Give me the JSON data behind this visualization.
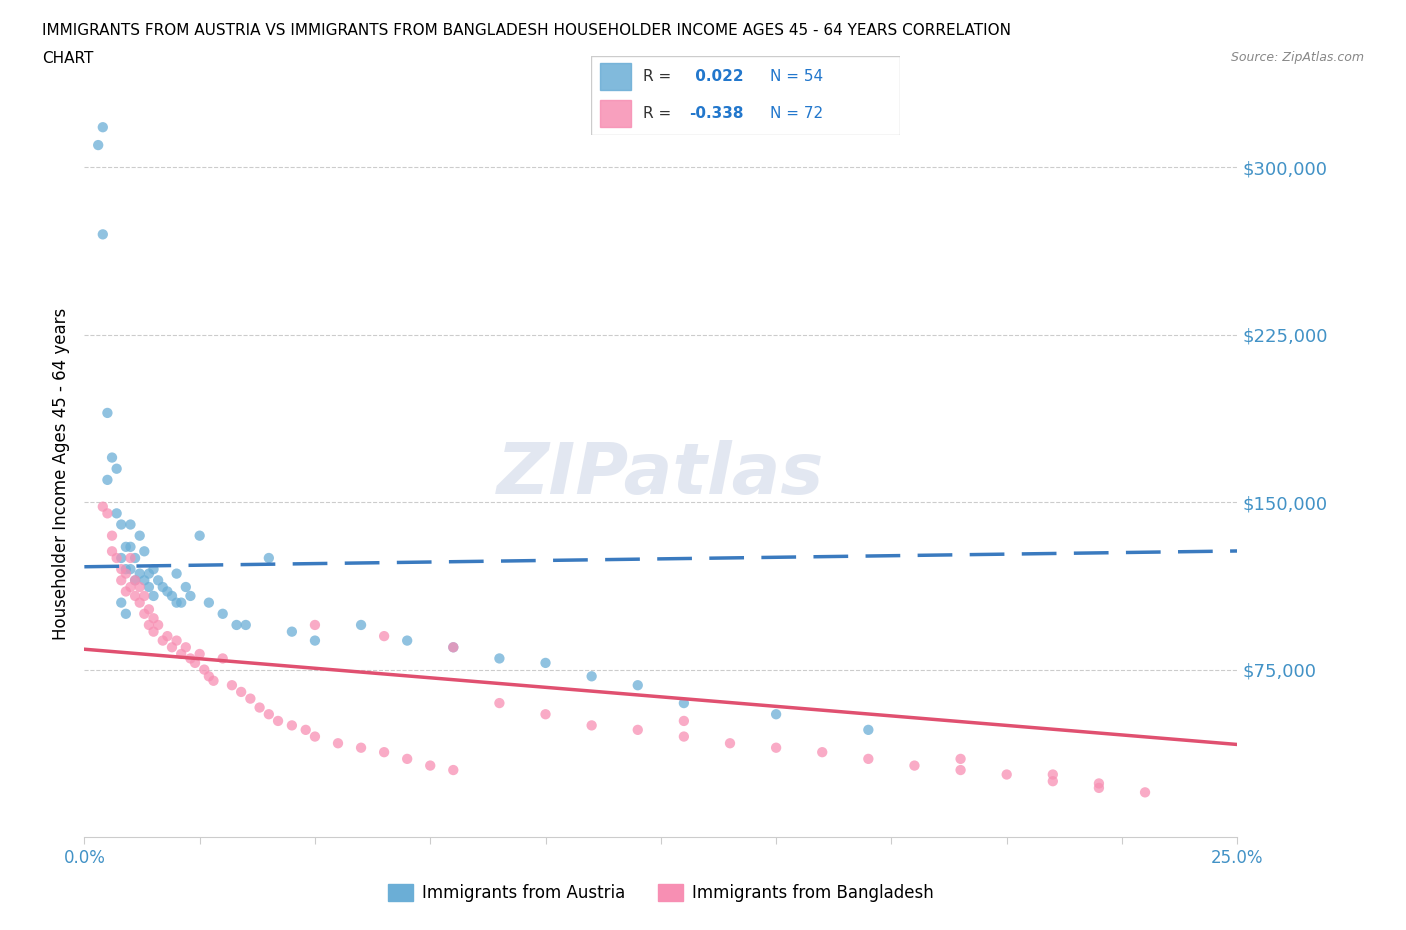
{
  "title_line1": "IMMIGRANTS FROM AUSTRIA VS IMMIGRANTS FROM BANGLADESH HOUSEHOLDER INCOME AGES 45 - 64 YEARS CORRELATION",
  "title_line2": "CHART",
  "source_text": "Source: ZipAtlas.com",
  "ylabel": "Householder Income Ages 45 - 64 years",
  "xlim": [
    0.0,
    0.25
  ],
  "ylim": [
    0,
    325000
  ],
  "ytick_vals": [
    75000,
    150000,
    225000,
    300000
  ],
  "austria_R": "0.022",
  "austria_N": "54",
  "bangladesh_R": "-0.338",
  "bangladesh_N": "72",
  "austria_color": "#6baed6",
  "bangladesh_color": "#f78fb3",
  "austria_line_color": "#3a7abf",
  "bangladesh_line_color": "#e05070",
  "watermark": "ZIPatlas",
  "austria_scatter_x": [
    0.003,
    0.004,
    0.004,
    0.005,
    0.005,
    0.006,
    0.007,
    0.007,
    0.008,
    0.008,
    0.009,
    0.009,
    0.01,
    0.01,
    0.01,
    0.011,
    0.011,
    0.012,
    0.012,
    0.013,
    0.013,
    0.014,
    0.014,
    0.015,
    0.015,
    0.016,
    0.017,
    0.018,
    0.019,
    0.02,
    0.021,
    0.022,
    0.023,
    0.025,
    0.027,
    0.03,
    0.033,
    0.04,
    0.045,
    0.05,
    0.06,
    0.07,
    0.08,
    0.09,
    0.1,
    0.11,
    0.12,
    0.13,
    0.15,
    0.17,
    0.008,
    0.009,
    0.02,
    0.035
  ],
  "austria_scatter_y": [
    310000,
    318000,
    270000,
    190000,
    160000,
    170000,
    165000,
    145000,
    140000,
    125000,
    130000,
    120000,
    140000,
    130000,
    120000,
    125000,
    115000,
    135000,
    118000,
    128000,
    115000,
    118000,
    112000,
    120000,
    108000,
    115000,
    112000,
    110000,
    108000,
    118000,
    105000,
    112000,
    108000,
    135000,
    105000,
    100000,
    95000,
    125000,
    92000,
    88000,
    95000,
    88000,
    85000,
    80000,
    78000,
    72000,
    68000,
    60000,
    55000,
    48000,
    105000,
    100000,
    105000,
    95000
  ],
  "bangladesh_scatter_x": [
    0.004,
    0.005,
    0.006,
    0.006,
    0.007,
    0.008,
    0.008,
    0.009,
    0.009,
    0.01,
    0.01,
    0.011,
    0.011,
    0.012,
    0.012,
    0.013,
    0.013,
    0.014,
    0.014,
    0.015,
    0.015,
    0.016,
    0.017,
    0.018,
    0.019,
    0.02,
    0.021,
    0.022,
    0.023,
    0.024,
    0.025,
    0.026,
    0.027,
    0.028,
    0.03,
    0.032,
    0.034,
    0.036,
    0.038,
    0.04,
    0.042,
    0.045,
    0.048,
    0.05,
    0.055,
    0.06,
    0.065,
    0.07,
    0.075,
    0.08,
    0.09,
    0.1,
    0.11,
    0.12,
    0.13,
    0.14,
    0.15,
    0.16,
    0.17,
    0.18,
    0.19,
    0.2,
    0.21,
    0.22,
    0.23,
    0.05,
    0.065,
    0.08,
    0.13,
    0.19,
    0.21,
    0.22
  ],
  "bangladesh_scatter_y": [
    148000,
    145000,
    135000,
    128000,
    125000,
    120000,
    115000,
    118000,
    110000,
    125000,
    112000,
    115000,
    108000,
    112000,
    105000,
    108000,
    100000,
    102000,
    95000,
    98000,
    92000,
    95000,
    88000,
    90000,
    85000,
    88000,
    82000,
    85000,
    80000,
    78000,
    82000,
    75000,
    72000,
    70000,
    80000,
    68000,
    65000,
    62000,
    58000,
    55000,
    52000,
    50000,
    48000,
    45000,
    42000,
    40000,
    38000,
    35000,
    32000,
    30000,
    60000,
    55000,
    50000,
    48000,
    45000,
    42000,
    40000,
    38000,
    35000,
    32000,
    30000,
    28000,
    25000,
    22000,
    20000,
    95000,
    90000,
    85000,
    52000,
    35000,
    28000,
    24000
  ]
}
